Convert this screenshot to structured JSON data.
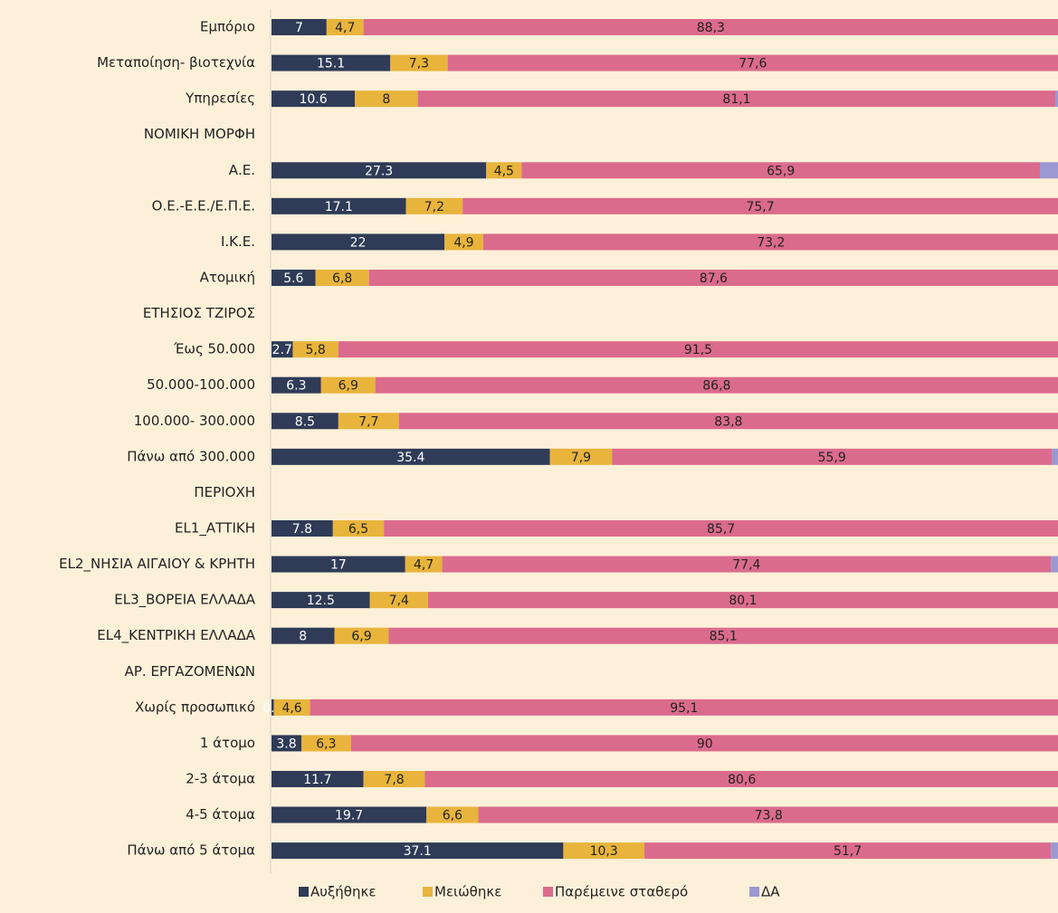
{
  "chart_data": {
    "type": "stacked_bar_horizontal",
    "categories": [
      "Εμπόριο",
      "Μεταποίηση- βιοτεχνία",
      "Υπηρεσίες",
      "ΝΟΜΙΚΗ ΜΟΡΦΗ",
      "Α.Ε.",
      "Ο.Ε.-Ε.Ε./Ε.Π.Ε.",
      "Ι.Κ.Ε.",
      "Ατομική",
      "ΕΤΗΣΙΟΣ ΤΖΙΡΟΣ",
      "Έως 50.000",
      "50.000-100.000",
      "100.000- 300.000",
      "Πάνω από 300.000",
      "ΠΕΡΙΟΧΗ",
      "EL1_ΑΤΤΙΚΗ",
      "EL2_ΝΗΣΙΑ ΑΙΓΑΙΟΥ & ΚΡΗΤΗ",
      "EL3_ΒΟΡΕΙΑ ΕΛΛΑΔΑ",
      "EL4_ΚΕΝΤΡΙΚΗ ΕΛΛΑΔΑ",
      "ΑΡ. ΕΡΓΑΖΟΜΕΝΩΝ",
      "Χωρίς προσωπικό",
      "1 άτομο",
      "2-3 άτομα",
      "4-5 άτομα",
      "Πάνω από 5 άτομα"
    ],
    "series": [
      {
        "name": "Αυξήθηκε",
        "color": "#2f3b57",
        "values": [
          7,
          15.1,
          10.6,
          null,
          27.3,
          17.1,
          22,
          5.6,
          null,
          2.7,
          6.3,
          8.5,
          35.4,
          null,
          7.8,
          17,
          12.5,
          8,
          null,
          0.3,
          3.8,
          11.7,
          19.7,
          37.1
        ]
      },
      {
        "name": "Μειώθηκε",
        "color": "#e8b43c",
        "values": [
          4.7,
          7.3,
          8,
          null,
          4.5,
          7.2,
          4.9,
          6.8,
          null,
          5.8,
          6.9,
          7.7,
          7.9,
          null,
          6.5,
          4.7,
          7.4,
          6.9,
          null,
          4.6,
          6.3,
          7.8,
          6.6,
          10.3
        ],
        "value_labels": [
          "4,7",
          "7,3",
          "8",
          null,
          "4,5",
          "7,2",
          "4,9",
          "6,8",
          null,
          "5,8",
          "6,9",
          "7,7",
          "7,9",
          null,
          "6,5",
          "4,7",
          "7,4",
          "6,9",
          null,
          "4,6",
          "6,3",
          "7,8",
          "6,6",
          "10,3"
        ]
      },
      {
        "name": "Παρέμεινε σταθερό",
        "color": "#db6b8d",
        "values": [
          88.3,
          77.6,
          81.1,
          null,
          65.9,
          75.7,
          73.2,
          87.6,
          null,
          91.5,
          86.8,
          83.8,
          55.9,
          null,
          85.7,
          77.4,
          80.1,
          85.1,
          null,
          95.1,
          90,
          80.6,
          73.8,
          51.7
        ],
        "value_labels": [
          "88,3",
          "77,6",
          "81,1",
          null,
          "65,9",
          "75,7",
          "73,2",
          "87,6",
          null,
          "91,5",
          "86,8",
          "83,8",
          "55,9",
          null,
          "85,7",
          "77,4",
          "80,1",
          "85,1",
          null,
          "95,1",
          "90",
          "80,6",
          "73,8",
          "51,7"
        ]
      },
      {
        "name": "ΔΑ",
        "color": "#9b98d2",
        "values": [
          null,
          null,
          0.3,
          null,
          2.3,
          null,
          null,
          null,
          null,
          null,
          null,
          null,
          0.8,
          null,
          null,
          0.9,
          null,
          null,
          null,
          null,
          null,
          null,
          null,
          0.9
        ]
      }
    ],
    "xlim": [
      0,
      100
    ],
    "legend": "bottom"
  }
}
